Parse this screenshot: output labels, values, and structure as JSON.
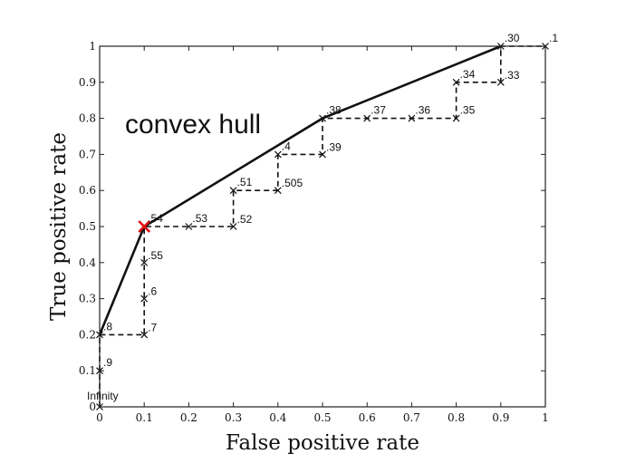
{
  "chart_data": {
    "type": "line",
    "xlabel": "False positive rate",
    "ylabel": "True positive rate",
    "xlim": [
      0,
      1
    ],
    "ylim": [
      0,
      1
    ],
    "x_ticks": [
      "0",
      "0.1",
      "0.2",
      "0.3",
      "0.4",
      "0.5",
      "0.6",
      "0.7",
      "0.8",
      "0.9",
      "1"
    ],
    "y_ticks": [
      "0",
      "0.1",
      "0.2",
      "0.3",
      "0.4",
      "0.5",
      "0.6",
      "0.7",
      "0.8",
      "0.9",
      "1"
    ],
    "annotation": "convex hull",
    "roc_points": [
      {
        "x": 0,
        "y": 0,
        "label": "Infinity"
      },
      {
        "x": 0,
        "y": 0.1,
        "label": ".9"
      },
      {
        "x": 0,
        "y": 0.2,
        "label": ".8"
      },
      {
        "x": 0.1,
        "y": 0.2,
        "label": ".7"
      },
      {
        "x": 0.1,
        "y": 0.3,
        "label": ".6"
      },
      {
        "x": 0.1,
        "y": 0.4,
        "label": ".55"
      },
      {
        "x": 0.1,
        "y": 0.5,
        "label": ".54"
      },
      {
        "x": 0.2,
        "y": 0.5,
        "label": ".53"
      },
      {
        "x": 0.3,
        "y": 0.5,
        "label": ".52"
      },
      {
        "x": 0.3,
        "y": 0.6,
        "label": ".51"
      },
      {
        "x": 0.4,
        "y": 0.6,
        "label": ".505"
      },
      {
        "x": 0.4,
        "y": 0.7,
        "label": ".4"
      },
      {
        "x": 0.5,
        "y": 0.7,
        "label": ".39"
      },
      {
        "x": 0.5,
        "y": 0.8,
        "label": ".38"
      },
      {
        "x": 0.6,
        "y": 0.8,
        "label": ".37"
      },
      {
        "x": 0.7,
        "y": 0.8,
        "label": ".36"
      },
      {
        "x": 0.8,
        "y": 0.8,
        "label": ".35"
      },
      {
        "x": 0.8,
        "y": 0.9,
        "label": ".34"
      },
      {
        "x": 0.9,
        "y": 0.9,
        "label": ".33"
      },
      {
        "x": 0.9,
        "y": 1.0,
        "label": ".30"
      },
      {
        "x": 1.0,
        "y": 1.0,
        "label": ".1"
      }
    ],
    "convex_hull": [
      {
        "x": 0,
        "y": 0.2
      },
      {
        "x": 0.1,
        "y": 0.5
      },
      {
        "x": 0.5,
        "y": 0.8
      },
      {
        "x": 0.9,
        "y": 1.0
      }
    ],
    "highlight_point": {
      "x": 0.1,
      "y": 0.5
    },
    "colors": {
      "roc": "#111111",
      "hull": "#111111",
      "highlight": "#e01010"
    }
  }
}
